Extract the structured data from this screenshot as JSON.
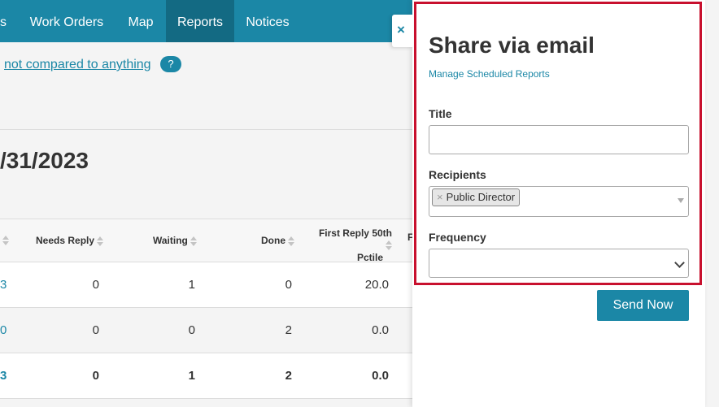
{
  "nav": {
    "items": [
      {
        "label": "s"
      },
      {
        "label": "Work Orders"
      },
      {
        "label": "Map"
      },
      {
        "label": "Reports"
      },
      {
        "label": "Notices"
      }
    ]
  },
  "compare": {
    "link": "not compared to anything",
    "help": "?"
  },
  "date_heading": "/31/2023",
  "table": {
    "headers": {
      "needs_reply": "Needs Reply",
      "waiting": "Waiting",
      "done": "Done",
      "first_reply_line1": "First Reply 50th",
      "first_reply_line2": "Pctile",
      "next_col": "F"
    },
    "rows": [
      {
        "first": "3",
        "needs_reply": "0",
        "waiting": "1",
        "done": "0",
        "first_reply": "20.0"
      },
      {
        "first": "0",
        "needs_reply": "0",
        "waiting": "0",
        "done": "2",
        "first_reply": "0.0"
      },
      {
        "first": "3",
        "needs_reply": "0",
        "waiting": "1",
        "done": "2",
        "first_reply": "0.0"
      }
    ]
  },
  "panel": {
    "close": "×",
    "title": "Share via email",
    "manage_link": "Manage Scheduled Reports",
    "title_label": "Title",
    "title_value": "",
    "recipients_label": "Recipients",
    "recipient_tag": "Public Director",
    "recipient_remove": "×",
    "frequency_label": "Frequency",
    "frequency_value": "",
    "send_button": "Send Now"
  },
  "colors": {
    "accent": "#1b87a6",
    "highlight": "#c8102e"
  }
}
